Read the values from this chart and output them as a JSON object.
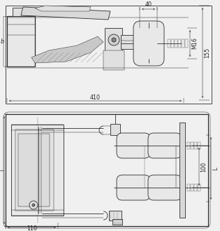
{
  "bg_color": "#f0f0f0",
  "lc": "#2a2a2a",
  "dc": "#2a2a2a",
  "lw": 0.6,
  "lwt": 0.9,
  "lws": 0.35,
  "fs": 5.8,
  "labels": {
    "dim_410": "410",
    "dim_40": "40",
    "dim_M16": "M16",
    "dim_155": "155",
    "dim_b": "b",
    "dim_110": "110",
    "dim_100": "100",
    "dim_l": "l",
    "dim_L": "L"
  }
}
